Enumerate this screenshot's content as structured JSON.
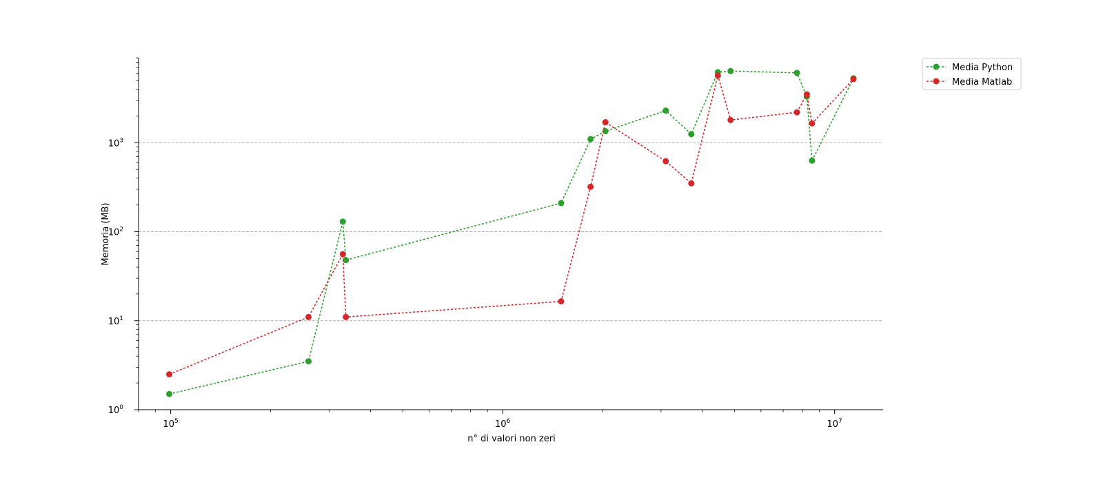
{
  "chart_data": {
    "type": "line",
    "title": "",
    "xlabel": "n° di valori non zeri",
    "ylabel": "Memoria (MB)",
    "xscale": "log",
    "yscale": "log",
    "xlim": [
      80000,
      14000000
    ],
    "ylim": [
      1,
      9000
    ],
    "grid": "y-major dashed",
    "legend_position": "top-right outside",
    "x_ticks": [
      {
        "value": 100000,
        "base": "10",
        "exp": "5"
      },
      {
        "value": 1000000,
        "base": "10",
        "exp": "6"
      },
      {
        "value": 10000000,
        "base": "10",
        "exp": "7"
      }
    ],
    "y_ticks": [
      {
        "value": 1,
        "base": "10",
        "exp": "0"
      },
      {
        "value": 10,
        "base": "10",
        "exp": "1"
      },
      {
        "value": 100,
        "base": "10",
        "exp": "2"
      },
      {
        "value": 1000,
        "base": "10",
        "exp": "3"
      }
    ],
    "series": [
      {
        "name": "Media Python",
        "color": "#2ca02c",
        "x": [
          99000,
          260000,
          330000,
          337000,
          1500000,
          1840000,
          2040000,
          3100000,
          3700000,
          4450000,
          4860000,
          7700000,
          8250000,
          8550000,
          11400000
        ],
        "y": [
          1.5,
          3.5,
          130,
          48,
          210,
          1100,
          1350,
          2300,
          1250,
          6200,
          6400,
          6100,
          3300,
          630,
          5300
        ]
      },
      {
        "name": "Media Matlab",
        "color": "#d62728",
        "x": [
          99000,
          260000,
          330000,
          337000,
          1500000,
          1840000,
          2040000,
          3100000,
          3700000,
          4450000,
          4860000,
          7700000,
          8250000,
          8550000,
          11400000
        ],
        "y": [
          2.5,
          11,
          56,
          11,
          16.5,
          320,
          1700,
          620,
          350,
          5700,
          1800,
          2200,
          3500,
          1650,
          5200
        ]
      }
    ]
  }
}
